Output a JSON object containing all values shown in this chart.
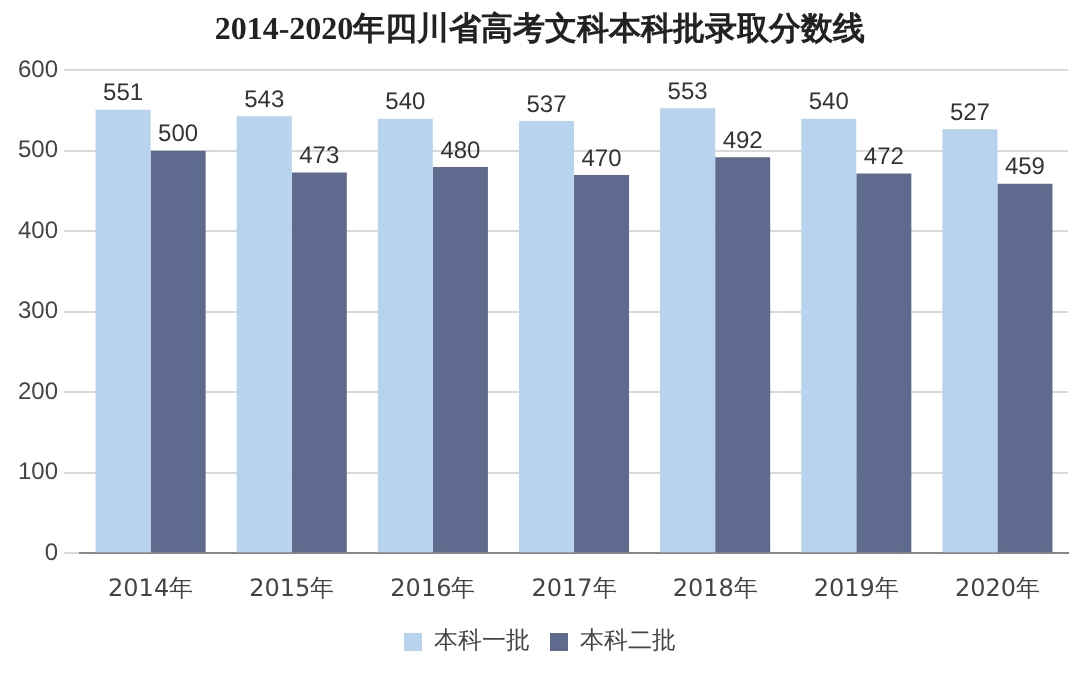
{
  "chart_data": {
    "type": "bar",
    "title": "2014-2020年四川省高考文科本科批录取分数线",
    "categories": [
      "2014年",
      "2015年",
      "2016年",
      "2017年",
      "2018年",
      "2019年",
      "2020年"
    ],
    "series": [
      {
        "name": "本科一批",
        "color": "#b8d3ee",
        "values": [
          551,
          543,
          540,
          537,
          553,
          540,
          527
        ]
      },
      {
        "name": "本科二批",
        "color": "#5f6b8e",
        "values": [
          500,
          473,
          480,
          470,
          492,
          472,
          459
        ]
      }
    ],
    "ylim": [
      0,
      600
    ],
    "yticks": [
      0,
      100,
      200,
      300,
      400,
      500,
      600
    ],
    "grid": "y",
    "legend": "bottom",
    "data_labels": true
  }
}
